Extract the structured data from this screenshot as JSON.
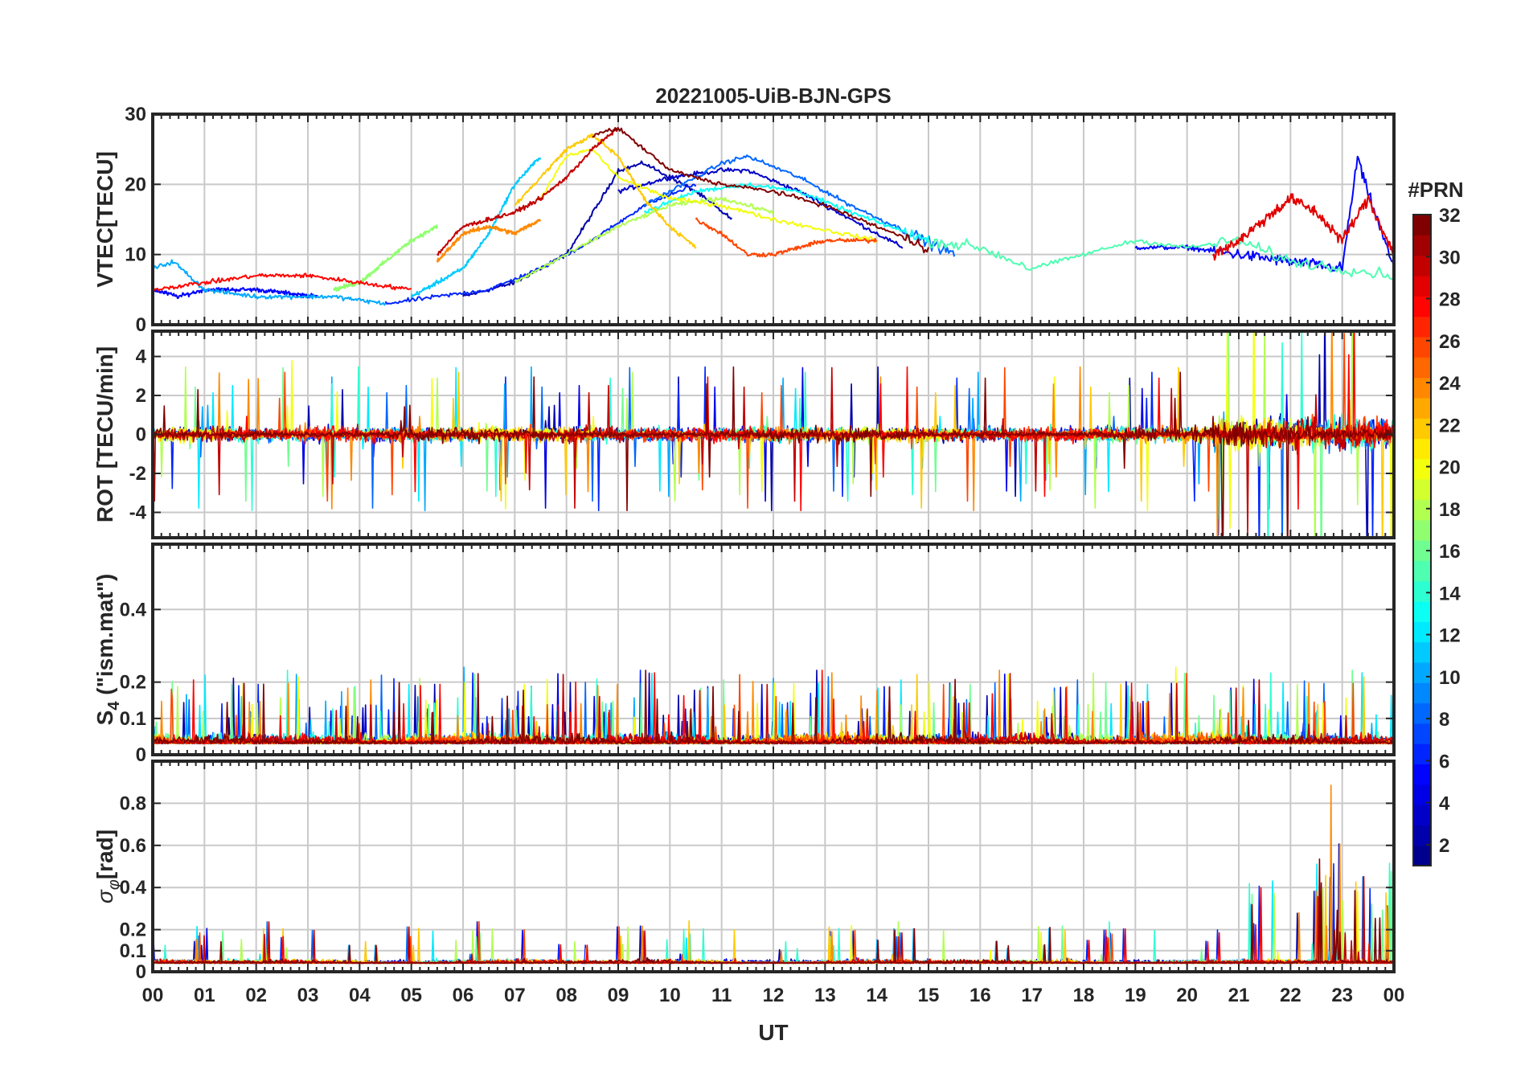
{
  "chart_data": {
    "type": "line",
    "title": "20221005-UiB-BJN-GPS",
    "xlabel": "UT",
    "x_unit": "hour (UT)",
    "xlim": [
      0,
      24
    ],
    "x_ticks": [
      "00",
      "01",
      "02",
      "03",
      "04",
      "05",
      "06",
      "07",
      "08",
      "09",
      "10",
      "11",
      "12",
      "13",
      "14",
      "15",
      "16",
      "17",
      "18",
      "19",
      "20",
      "21",
      "22",
      "23",
      "00"
    ],
    "grid": true,
    "colorbar": {
      "title": "#PRN",
      "range": [
        1,
        32
      ],
      "ticks": [
        "2",
        "4",
        "6",
        "8",
        "10",
        "12",
        "14",
        "16",
        "18",
        "20",
        "22",
        "24",
        "26",
        "28",
        "30",
        "32"
      ],
      "colormap": [
        "#00008f",
        "#0000ff",
        "#0080ff",
        "#00ffff",
        "#80ff80",
        "#ffff00",
        "#ff8000",
        "#ff0000",
        "#800000"
      ]
    },
    "panels": [
      {
        "id": "vtec",
        "ylabel": "VTEC[TECU]",
        "ylim": [
          0,
          30
        ],
        "y_ticks": [
          "0",
          "10",
          "20",
          "30"
        ],
        "tick_values": [
          0,
          10,
          20,
          30
        ],
        "series": [
          {
            "prn": 2,
            "seg": [
              6.0,
              11.2
            ],
            "x": [
              6.0,
              7.0,
              8.0,
              8.6,
              9.0,
              9.5,
              10.0,
              10.5,
              11.2
            ],
            "y": [
              4,
              6,
              10,
              17,
              22,
              23,
              21,
              19,
              15
            ]
          },
          {
            "prn": 3,
            "seg": [
              9.0,
              14.5
            ],
            "x": [
              9.0,
              10.0,
              11.0,
              11.5,
              12.5,
              13.5,
              14.5
            ],
            "y": [
              19,
              21,
              22,
              22,
              19,
              15,
              11
            ]
          },
          {
            "prn": 5,
            "seg": [
              0.0,
              3.2
            ],
            "x": [
              0,
              0.5,
              1.0,
              2.0,
              3.2
            ],
            "y": [
              5,
              4,
              5,
              5,
              4
            ]
          },
          {
            "prn": 5,
            "seg": [
              19.0,
              24.0
            ],
            "x": [
              19,
              20,
              21,
              22,
              23,
              23.3,
              23.4,
              24
            ],
            "y": [
              11,
              11,
              10,
              9,
              8,
              24,
              21,
              8
            ]
          },
          {
            "prn": 6,
            "seg": [
              4.5,
              10.5
            ],
            "x": [
              4.5,
              5.5,
              6.5,
              7.5,
              8.5,
              9.5,
              10.5
            ],
            "y": [
              3,
              4,
              5,
              8,
              12,
              17,
              20
            ]
          },
          {
            "prn": 8,
            "seg": [
              9.5,
              15.5
            ],
            "x": [
              9.5,
              10.5,
              11.0,
              11.5,
              12.5,
              13.5,
              15.5
            ],
            "y": [
              17,
              21,
              23,
              24,
              21,
              17,
              10
            ]
          },
          {
            "prn": 10,
            "seg": [
              0.0,
              4.5
            ],
            "x": [
              0,
              0.4,
              1.0,
              2.0,
              3.5,
              4.5
            ],
            "y": [
              8,
              9,
              5,
              4,
              4,
              3
            ]
          },
          {
            "prn": 11,
            "seg": [
              5.0,
              7.5
            ],
            "x": [
              5.0,
              6.0,
              6.5,
              7.0,
              7.5
            ],
            "y": [
              4,
              8,
              13,
              20,
              24
            ]
          },
          {
            "prn": 13,
            "seg": [
              9.5,
              15.0
            ],
            "x": [
              9.5,
              10.5,
              11.5,
              12.5,
              13.5,
              15.0
            ],
            "y": [
              16,
              19,
              20,
              19,
              16,
              12
            ]
          },
          {
            "prn": 15,
            "seg": [
              15.0,
              24.0
            ],
            "x": [
              15,
              16,
              17,
              18,
              19,
              20,
              21,
              22,
              23,
              24
            ],
            "y": [
              12,
              11,
              8,
              10,
              12,
              11,
              12,
              9,
              8,
              7
            ]
          },
          {
            "prn": 17,
            "seg": [
              3.5,
              5.5
            ],
            "x": [
              3.5,
              4.0,
              4.5,
              5.0,
              5.5
            ],
            "y": [
              5,
              6,
              9,
              12,
              14
            ]
          },
          {
            "prn": 18,
            "seg": [
              7.0,
              12.0
            ],
            "x": [
              7.0,
              8.0,
              9.0,
              10.0,
              11.0,
              12.0
            ],
            "y": [
              6,
              10,
              14,
              17,
              18,
              16
            ]
          },
          {
            "prn": 20,
            "seg": [
              7.5,
              14.0
            ],
            "x": [
              7.5,
              8.0,
              8.5,
              9.0,
              10.0,
              11.0,
              12.0,
              14.0
            ],
            "y": [
              18,
              24,
              25,
              21,
              18,
              17,
              15,
              12
            ]
          },
          {
            "prn": 22,
            "seg": [
              7.0,
              10.5
            ],
            "x": [
              7.0,
              7.5,
              8.0,
              8.5,
              9.0,
              9.5,
              10.0,
              10.5
            ],
            "y": [
              17,
              21,
              25,
              27,
              24,
              18,
              14,
              11
            ]
          },
          {
            "prn": 24,
            "seg": [
              5.5,
              7.5
            ],
            "x": [
              5.5,
              6.0,
              6.5,
              7.0,
              7.5
            ],
            "y": [
              9,
              13,
              14,
              13,
              15
            ]
          },
          {
            "prn": 26,
            "seg": [
              10.5,
              14.0
            ],
            "x": [
              10.5,
              11.0,
              11.5,
              12.0,
              13.0,
              14.0
            ],
            "y": [
              15,
              13,
              10,
              10,
              12,
              12
            ]
          },
          {
            "prn": 28,
            "seg": [
              0.0,
              5.0
            ],
            "x": [
              0,
              1,
              2,
              3,
              4,
              5
            ],
            "y": [
              5,
              6,
              7,
              7,
              6,
              5
            ]
          },
          {
            "prn": 29,
            "seg": [
              20.5,
              24.0
            ],
            "x": [
              20.5,
              21.0,
              21.5,
              22.0,
              22.5,
              23.0,
              23.5,
              24.0
            ],
            "y": [
              10,
              12,
              15,
              18,
              16,
              12,
              18,
              10
            ]
          },
          {
            "prn": 30,
            "seg": [
              5.5,
              9.0
            ],
            "x": [
              5.5,
              6.0,
              7.0,
              7.5,
              8.0,
              8.5,
              9.0
            ],
            "y": [
              10,
              14,
              16,
              18,
              21,
              25,
              28
            ]
          },
          {
            "prn": 32,
            "seg": [
              8.5,
              15.0
            ],
            "x": [
              8.5,
              9.0,
              9.5,
              10.0,
              11.0,
              12.0,
              13.0,
              14.0,
              15.0
            ],
            "y": [
              27,
              28,
              25,
              22,
              20,
              19,
              17,
              14,
              11
            ]
          }
        ]
      },
      {
        "id": "rot",
        "ylabel": "ROT [TECU/min]",
        "ylim": [
          -5.3,
          5.3
        ],
        "y_ticks": [
          "-4",
          "-2",
          "0",
          "2",
          "4"
        ],
        "tick_values": [
          -4,
          -2,
          0,
          2,
          4
        ]
      },
      {
        "id": "s4",
        "ylabel_main": "S",
        "ylabel_sub": "4",
        "ylabel_rest": " (\"ism.mat\")",
        "ylim": [
          0,
          0.58
        ],
        "y_ticks": [
          "0",
          "0.1",
          "0.2",
          "0.4"
        ],
        "tick_values": [
          0,
          0.1,
          0.2,
          0.4
        ]
      },
      {
        "id": "sigma",
        "ylabel_main": "σ",
        "ylabel_sub": "φ",
        "ylabel_rest": "[rad]",
        "ylim": [
          0,
          1.0
        ],
        "y_ticks": [
          "0",
          "0.1",
          "0.2",
          "0.4",
          "0.6",
          "0.8"
        ],
        "tick_values": [
          0,
          0.1,
          0.2,
          0.4,
          0.6,
          0.8
        ]
      }
    ]
  }
}
